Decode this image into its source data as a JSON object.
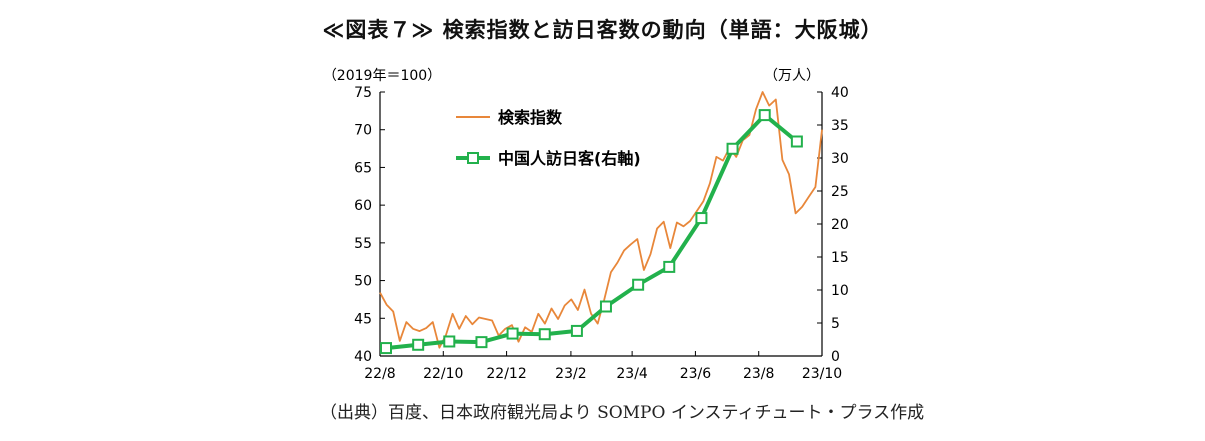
{
  "title": "≪図表７≫ 検索指数と訪日客数の動向（単語：大阪城）",
  "source": "（出典）百度、日本政府観光局より SOMPO インスティチュート・プラス作成",
  "colors": {
    "search_index": "#E8873A",
    "visitors": "#22B14C",
    "axis": "#000000"
  },
  "chart_data": {
    "type": "line",
    "left_axis_unit": "（2019年＝100）",
    "right_axis_unit": "（万人）",
    "ylim_left": [
      40,
      75
    ],
    "ylim_right": [
      0,
      40
    ],
    "yticks_left": [
      "75",
      "70",
      "65",
      "60",
      "55",
      "50",
      "45",
      "40"
    ],
    "yticks_right": [
      "40",
      "35",
      "30",
      "25",
      "20",
      "15",
      "10",
      "5",
      "0"
    ],
    "xticks": [
      "22/8",
      "22/10",
      "22/12",
      "23/2",
      "23/4",
      "23/6",
      "23/8",
      "23/10"
    ],
    "x_start": "2022-08-01",
    "x_end": "2023-10-01",
    "legend": "upper-left",
    "series": [
      {
        "name": "検索指数",
        "axis": "left",
        "marker": "none",
        "values": [
          48.4,
          46.8,
          45.9,
          42.0,
          44.5,
          43.6,
          43.3,
          43.7,
          44.5,
          41.1,
          42.8,
          45.6,
          43.6,
          45.3,
          44.2,
          45.1,
          44.9,
          44.7,
          42.7,
          43.6,
          44.1,
          41.9,
          43.8,
          43.2,
          45.6,
          44.3,
          46.3,
          44.9,
          46.7,
          47.5,
          46.1,
          48.8,
          45.6,
          44.3,
          47.5,
          51.1,
          52.4,
          54.0,
          54.8,
          55.5,
          51.4,
          53.5,
          56.9,
          57.8,
          54.3,
          57.7,
          57.2,
          57.9,
          59.2,
          60.5,
          62.9,
          66.4,
          65.9,
          67.6,
          66.4,
          68.6,
          69.3,
          72.7,
          75.0,
          73.2,
          74.0,
          66.0,
          64.1,
          58.9,
          59.8,
          61.1,
          62.4,
          70.0
        ]
      },
      {
        "name": "中国人訪日客(右軸)",
        "axis": "right",
        "marker": "square",
        "dates": [
          "2022-08-01",
          "2022-09-01",
          "2022-10-01",
          "2022-11-01",
          "2022-12-01",
          "2023-01-01",
          "2023-02-01",
          "2023-03-01",
          "2023-04-01",
          "2023-05-01",
          "2023-06-01",
          "2023-07-01",
          "2023-08-01",
          "2023-09-01"
        ],
        "values": [
          1.2,
          1.7,
          2.2,
          2.1,
          3.4,
          3.3,
          3.8,
          7.5,
          10.8,
          13.5,
          20.9,
          31.4,
          36.5,
          32.5
        ]
      }
    ]
  }
}
